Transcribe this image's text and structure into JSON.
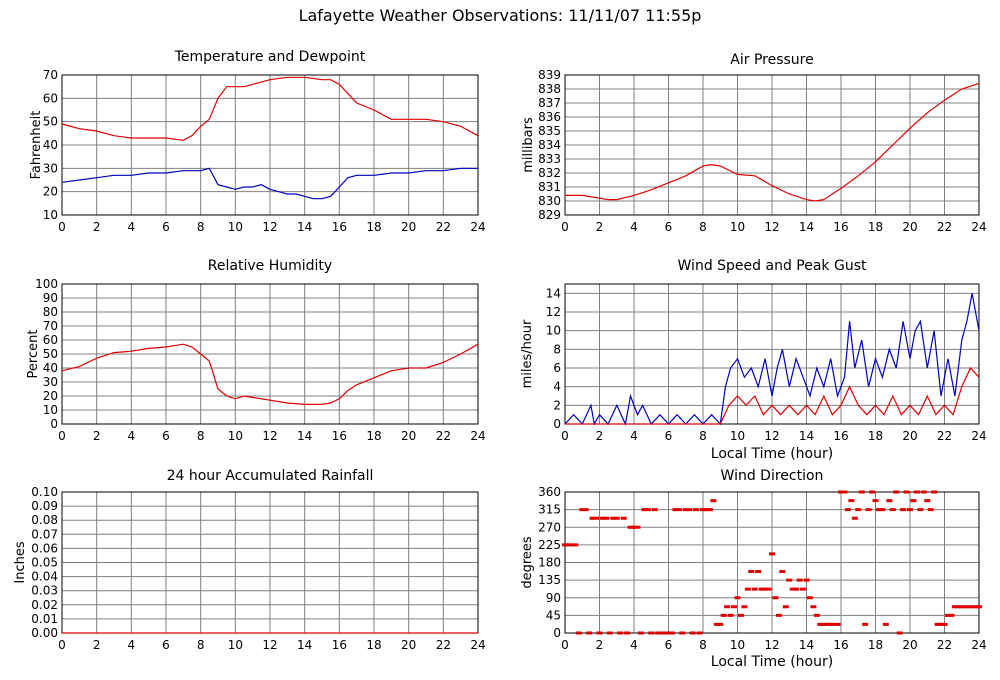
{
  "page": {
    "title": "Lafayette Weather Observations: 11/11/07 11:55p"
  },
  "colors": {
    "temperature": "#e00000",
    "dewpoint": "#0000c0",
    "red_series": "#e00000",
    "blue_series": "#0000c0",
    "grid": "#808080"
  },
  "chart_data": [
    {
      "id": "temp",
      "type": "line",
      "title": "Temperature and Dewpoint",
      "xlabel": "",
      "ylabel": "Fahrenheit",
      "xlim": [
        0,
        24
      ],
      "ylim": [
        10,
        70
      ],
      "xticks": [
        0,
        2,
        4,
        6,
        8,
        10,
        12,
        14,
        16,
        18,
        20,
        22,
        24
      ],
      "yticks": [
        10,
        20,
        30,
        40,
        50,
        60,
        70
      ],
      "grid": true,
      "series": [
        {
          "color": "#e00000",
          "x": [
            0,
            1,
            2,
            3,
            4,
            5,
            6,
            7,
            7.5,
            8,
            8.5,
            9,
            9.5,
            10,
            10.5,
            11,
            12,
            13,
            14,
            15,
            15.5,
            16,
            16.5,
            17,
            18,
            19,
            20,
            21,
            22,
            23,
            24
          ],
          "y": [
            49,
            47,
            46,
            44,
            43,
            43,
            43,
            42,
            44,
            48,
            51,
            60,
            65,
            65,
            65,
            66,
            68,
            69,
            69,
            68,
            68,
            66,
            62,
            58,
            55,
            51,
            51,
            51,
            50,
            48,
            44
          ]
        },
        {
          "color": "#0000c0",
          "x": [
            0,
            1,
            2,
            3,
            4,
            5,
            6,
            7,
            8,
            8.5,
            9,
            9.5,
            10,
            10.5,
            11,
            11.5,
            12,
            12.5,
            13,
            13.5,
            14,
            14.5,
            15,
            15.5,
            16,
            16.5,
            17,
            18,
            19,
            20,
            21,
            22,
            23,
            24
          ],
          "y": [
            24,
            25,
            26,
            27,
            27,
            28,
            28,
            29,
            29,
            30,
            23,
            22,
            21,
            22,
            22,
            23,
            21,
            20,
            19,
            19,
            18,
            17,
            17,
            18,
            22,
            26,
            27,
            27,
            28,
            28,
            29,
            29,
            30,
            30
          ]
        }
      ]
    },
    {
      "id": "pressure",
      "type": "line",
      "title": "Air Pressure",
      "xlabel": "",
      "ylabel": "millibars",
      "xlim": [
        0,
        24
      ],
      "ylim": [
        829,
        839
      ],
      "xticks": [
        0,
        2,
        4,
        6,
        8,
        10,
        12,
        14,
        16,
        18,
        20,
        22,
        24
      ],
      "yticks": [
        829,
        830,
        831,
        832,
        833,
        834,
        835,
        836,
        837,
        838,
        839
      ],
      "grid": true,
      "series": [
        {
          "color": "#e00000",
          "x": [
            0,
            1,
            2,
            2.5,
            3,
            4,
            5,
            6,
            7,
            8,
            8.5,
            9,
            10,
            11,
            12,
            13,
            14,
            14.5,
            15,
            16,
            17,
            18,
            19,
            20,
            21,
            22,
            23,
            24
          ],
          "y": [
            830.4,
            830.4,
            830.2,
            830.1,
            830.1,
            830.4,
            830.8,
            831.3,
            831.8,
            832.5,
            832.6,
            832.5,
            831.9,
            831.8,
            831.1,
            830.5,
            830.1,
            830.0,
            830.1,
            830.9,
            831.8,
            832.8,
            834.0,
            835.2,
            836.3,
            837.2,
            838.0,
            838.4
          ]
        }
      ]
    },
    {
      "id": "humidity",
      "type": "line",
      "title": "Relative Humidity",
      "xlabel": "",
      "ylabel": "Percent",
      "xlim": [
        0,
        24
      ],
      "ylim": [
        0,
        100
      ],
      "xticks": [
        0,
        2,
        4,
        6,
        8,
        10,
        12,
        14,
        16,
        18,
        20,
        22,
        24
      ],
      "yticks": [
        0,
        10,
        20,
        30,
        40,
        50,
        60,
        70,
        80,
        90,
        100
      ],
      "grid": true,
      "series": [
        {
          "color": "#e00000",
          "x": [
            0,
            1,
            2,
            3,
            4,
            5,
            6,
            7,
            7.5,
            8,
            8.5,
            9,
            9.5,
            10,
            10.5,
            11,
            12,
            13,
            14,
            15,
            15.5,
            16,
            16.5,
            17,
            18,
            19,
            20,
            21,
            22,
            23,
            24
          ],
          "y": [
            38,
            41,
            47,
            51,
            52,
            54,
            55,
            57,
            55,
            50,
            45,
            25,
            20,
            18,
            20,
            19,
            17,
            15,
            14,
            14,
            15,
            18,
            24,
            28,
            33,
            38,
            40,
            40,
            44,
            50,
            57
          ]
        }
      ]
    },
    {
      "id": "wind",
      "type": "line",
      "title": "Wind Speed and Peak Gust",
      "xlabel": "Local Time (hour)",
      "ylabel": "miles/hour",
      "xlim": [
        0,
        24
      ],
      "ylim": [
        0,
        15
      ],
      "xticks": [
        0,
        2,
        4,
        6,
        8,
        10,
        12,
        14,
        16,
        18,
        20,
        22,
        24
      ],
      "yticks": [
        0,
        2,
        4,
        6,
        8,
        10,
        12,
        14
      ],
      "grid": true,
      "series": [
        {
          "color": "#0000c0",
          "x": [
            0,
            0.5,
            1,
            1.5,
            1.7,
            2,
            2.5,
            3,
            3.5,
            3.8,
            4.2,
            4.5,
            5,
            5.5,
            6,
            6.5,
            7,
            7.5,
            8,
            8.5,
            9,
            9.3,
            9.6,
            10,
            10.4,
            10.8,
            11.2,
            11.6,
            12,
            12.3,
            12.6,
            13,
            13.4,
            13.8,
            14.2,
            14.6,
            15,
            15.4,
            15.8,
            16.2,
            16.5,
            16.8,
            17.2,
            17.6,
            18,
            18.4,
            18.8,
            19.2,
            19.6,
            20,
            20.3,
            20.6,
            21,
            21.4,
            21.8,
            22.2,
            22.6,
            23,
            23.3,
            23.6,
            24
          ],
          "y": [
            0,
            1,
            0,
            2,
            0,
            1,
            0,
            2,
            0,
            3,
            1,
            2,
            0,
            1,
            0,
            1,
            0,
            1,
            0,
            1,
            0,
            4,
            6,
            7,
            5,
            6,
            4,
            7,
            3,
            6,
            8,
            4,
            7,
            5,
            3,
            6,
            4,
            7,
            3,
            5,
            11,
            6,
            9,
            4,
            7,
            5,
            8,
            6,
            11,
            7,
            10,
            11,
            6,
            10,
            3,
            7,
            3,
            9,
            11,
            14,
            10
          ]
        },
        {
          "color": "#e00000",
          "x": [
            0,
            1,
            2,
            3,
            4,
            5,
            6,
            7,
            8,
            9,
            9.5,
            10,
            10.5,
            11,
            11.5,
            12,
            12.5,
            13,
            13.5,
            14,
            14.5,
            15,
            15.5,
            16,
            16.5,
            17,
            17.5,
            18,
            18.5,
            19,
            19.5,
            20,
            20.5,
            21,
            21.5,
            22,
            22.5,
            23,
            23.5,
            24
          ],
          "y": [
            0,
            0,
            0,
            0,
            0,
            0,
            0,
            0,
            0,
            0,
            2,
            3,
            2,
            3,
            1,
            2,
            1,
            2,
            1,
            2,
            1,
            3,
            1,
            2,
            4,
            2,
            1,
            2,
            1,
            3,
            1,
            2,
            1,
            3,
            1,
            2,
            1,
            4,
            6,
            5
          ]
        }
      ]
    },
    {
      "id": "rain",
      "type": "line",
      "title": "24 hour Accumulated Rainfall",
      "xlabel": "",
      "ylabel": "Inches",
      "xlim": [
        0,
        24
      ],
      "ylim": [
        0,
        0.1
      ],
      "xticks": [
        0,
        2,
        4,
        6,
        8,
        10,
        12,
        14,
        16,
        18,
        20,
        22,
        24
      ],
      "yticks": [
        "0.00",
        "0.01",
        "0.02",
        "0.03",
        "0.04",
        "0.05",
        "0.06",
        "0.07",
        "0.08",
        "0.09",
        "0.10"
      ],
      "grid": true,
      "series": [
        {
          "color": "#e00000",
          "x": [
            0,
            24
          ],
          "y": [
            0,
            0
          ]
        }
      ]
    },
    {
      "id": "direction",
      "type": "scatter",
      "title": "Wind Direction",
      "xlabel": "Local Time (hour)",
      "ylabel": "degrees",
      "xlim": [
        0,
        24
      ],
      "ylim": [
        0,
        360
      ],
      "xticks": [
        0,
        2,
        4,
        6,
        8,
        10,
        12,
        14,
        16,
        18,
        20,
        22,
        24
      ],
      "yticks": [
        0,
        45,
        90,
        135,
        180,
        225,
        270,
        315,
        360
      ],
      "grid": true,
      "series": [
        {
          "color": "#e00000",
          "x": [
            0,
            0.2,
            0.4,
            0.6,
            0.8,
            1.0,
            1.2,
            1.4,
            1.6,
            1.8,
            2.0,
            2.2,
            2.4,
            2.6,
            2.8,
            3.0,
            3.2,
            3.4,
            3.6,
            3.8,
            4.0,
            4.2,
            4.4,
            4.6,
            4.8,
            5.0,
            5.2,
            5.4,
            5.6,
            5.8,
            6.0,
            6.2,
            6.4,
            6.6,
            6.8,
            7.0,
            7.2,
            7.4,
            7.6,
            7.8,
            8.0,
            8.2,
            8.4,
            8.6,
            8.8,
            9.0,
            9.2,
            9.4,
            9.6,
            9.8,
            10.0,
            10.2,
            10.4,
            10.6,
            10.8,
            11.0,
            11.2,
            11.4,
            11.6,
            11.8,
            12.0,
            12.2,
            12.4,
            12.6,
            12.8,
            13.0,
            13.2,
            13.4,
            13.6,
            13.8,
            14.0,
            14.2,
            14.4,
            14.6,
            14.8,
            15.0,
            15.2,
            15.4,
            15.6,
            15.8,
            16.0,
            16.2,
            16.4,
            16.6,
            16.8,
            17.0,
            17.2,
            17.4,
            17.6,
            17.8,
            18.0,
            18.2,
            18.4,
            18.6,
            18.8,
            19.0,
            19.2,
            19.4,
            19.6,
            19.8,
            20.0,
            20.2,
            20.4,
            20.6,
            20.8,
            21.0,
            21.2,
            21.4,
            21.6,
            21.8,
            22.0,
            22.2,
            22.4,
            22.6,
            22.8,
            23.0,
            23.2,
            23.4,
            23.6,
            23.8,
            24.0
          ],
          "y": [
            225,
            225,
            225,
            225,
            0,
            315,
            315,
            0,
            293,
            293,
            0,
            293,
            293,
            0,
            293,
            293,
            0,
            293,
            0,
            270,
            270,
            270,
            0,
            315,
            315,
            0,
            315,
            0,
            0,
            0,
            0,
            0,
            315,
            315,
            0,
            315,
            315,
            0,
            315,
            0,
            315,
            315,
            315,
            338,
            22,
            22,
            45,
            67,
            45,
            67,
            90,
            45,
            67,
            112,
            157,
            112,
            157,
            112,
            112,
            112,
            202,
            90,
            45,
            157,
            67,
            135,
            112,
            112,
            135,
            112,
            135,
            90,
            67,
            45,
            22,
            22,
            22,
            22,
            22,
            22,
            360,
            360,
            315,
            338,
            293,
            315,
            360,
            22,
            315,
            360,
            338,
            315,
            315,
            22,
            338,
            315,
            360,
            0,
            315,
            360,
            315,
            338,
            360,
            315,
            360,
            338,
            315,
            360,
            22,
            22,
            22,
            45,
            45,
            67,
            67,
            67,
            67,
            67,
            67,
            67,
            67
          ]
        }
      ]
    }
  ]
}
